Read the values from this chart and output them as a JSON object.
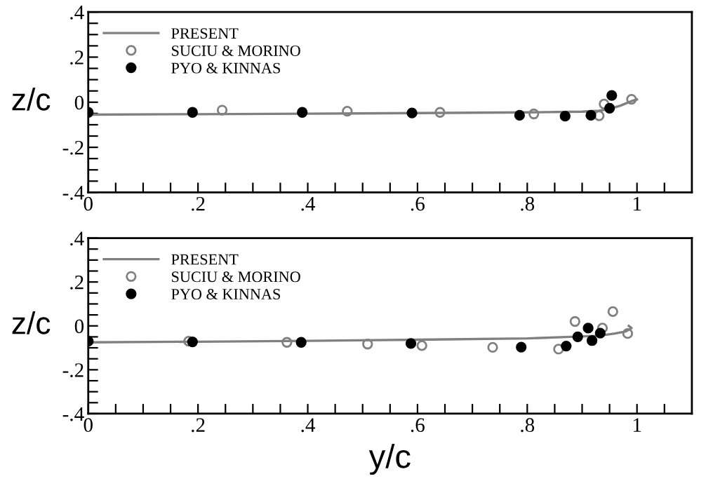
{
  "chart_data": [
    {
      "type": "line",
      "ylabel": "z/c",
      "legend": "top left",
      "grid": false,
      "xlim": [
        0,
        1.1
      ],
      "ylim": [
        -0.4,
        0.4
      ],
      "xticks": [
        0,
        {
          "value": 0.05,
          "label": null
        },
        {
          "value": 0.1,
          "label": null
        },
        {
          "value": 0.15,
          "label": null
        },
        {
          "value": 0.2,
          "label": ".2"
        },
        {
          "value": 0.25,
          "label": null
        },
        {
          "value": 0.3,
          "label": null
        },
        {
          "value": 0.35,
          "label": null
        },
        {
          "value": 0.4,
          "label": ".4"
        },
        {
          "value": 0.45,
          "label": null
        },
        {
          "value": 0.5,
          "label": null
        },
        {
          "value": 0.55,
          "label": null
        },
        {
          "value": 0.6,
          "label": ".6"
        },
        {
          "value": 0.65,
          "label": null
        },
        {
          "value": 0.7,
          "label": null
        },
        {
          "value": 0.75,
          "label": null
        },
        {
          "value": 0.8,
          "label": ".8"
        },
        {
          "value": 0.85,
          "label": null
        },
        {
          "value": 0.9,
          "label": null
        },
        {
          "value": 0.95,
          "label": null
        },
        1,
        {
          "value": 1.05,
          "label": null
        }
      ],
      "yticks": [
        {
          "value": -0.4,
          "label": "-.4"
        },
        {
          "value": -0.35,
          "label": null
        },
        {
          "value": -0.3,
          "label": null
        },
        {
          "value": -0.25,
          "label": null
        },
        {
          "value": -0.2,
          "label": "-.2"
        },
        {
          "value": -0.15,
          "label": null
        },
        {
          "value": -0.1,
          "label": null
        },
        {
          "value": -0.05,
          "label": null
        },
        0,
        {
          "value": 0.05,
          "label": null
        },
        {
          "value": 0.1,
          "label": null
        },
        {
          "value": 0.15,
          "label": null
        },
        {
          "value": 0.2,
          "label": ".2"
        },
        {
          "value": 0.25,
          "label": null
        },
        {
          "value": 0.3,
          "label": null
        },
        {
          "value": 0.35,
          "label": null
        },
        {
          "value": 0.4,
          "label": ".4"
        }
      ],
      "series": [
        {
          "name": "PRESENT",
          "marker": "none",
          "color": "#808080",
          "x": [
            0,
            0.2,
            0.4,
            0.6,
            0.8,
            0.9,
            0.93,
            0.95,
            0.97,
            0.98,
            0.99,
            1.0
          ],
          "values": [
            -0.055,
            -0.053,
            -0.051,
            -0.048,
            -0.045,
            -0.042,
            -0.038,
            -0.03,
            -0.015,
            -0.005,
            0.005,
            0.012
          ]
        },
        {
          "name": "SUCIU & MORINO",
          "type": "scatter",
          "marker": "circle",
          "color": "#808080",
          "x": [
            0.244,
            0.472,
            0.641,
            0.812,
            0.931,
            0.94,
            0.99
          ],
          "values": [
            -0.035,
            -0.04,
            -0.045,
            -0.052,
            -0.06,
            -0.008,
            0.013
          ]
        },
        {
          "name": "PYO & KINNAS",
          "type": "scatter",
          "marker": "circle",
          "color": "#000000",
          "x": [
            0,
            0.19,
            0.39,
            0.59,
            0.786,
            0.869,
            0.916,
            0.95,
            0.954
          ],
          "values": [
            -0.045,
            -0.045,
            -0.045,
            -0.048,
            -0.058,
            -0.062,
            -0.058,
            -0.027,
            0.03
          ]
        }
      ]
    },
    {
      "type": "line",
      "xlabel": "y/c",
      "ylabel": "z/c",
      "legend": "top left",
      "grid": false,
      "xlim": [
        0,
        1.1
      ],
      "ylim": [
        -0.4,
        0.4
      ],
      "xticks": [
        0,
        {
          "value": 0.05,
          "label": null
        },
        {
          "value": 0.1,
          "label": null
        },
        {
          "value": 0.15,
          "label": null
        },
        {
          "value": 0.2,
          "label": ".2"
        },
        {
          "value": 0.25,
          "label": null
        },
        {
          "value": 0.3,
          "label": null
        },
        {
          "value": 0.35,
          "label": null
        },
        {
          "value": 0.4,
          "label": ".4"
        },
        {
          "value": 0.45,
          "label": null
        },
        {
          "value": 0.5,
          "label": null
        },
        {
          "value": 0.55,
          "label": null
        },
        {
          "value": 0.6,
          "label": ".6"
        },
        {
          "value": 0.65,
          "label": null
        },
        {
          "value": 0.7,
          "label": null
        },
        {
          "value": 0.75,
          "label": null
        },
        {
          "value": 0.8,
          "label": ".8"
        },
        {
          "value": 0.85,
          "label": null
        },
        {
          "value": 0.9,
          "label": null
        },
        {
          "value": 0.95,
          "label": null
        },
        1,
        {
          "value": 1.05,
          "label": null
        }
      ],
      "yticks": [
        {
          "value": -0.4,
          "label": "-.4"
        },
        {
          "value": -0.35,
          "label": null
        },
        {
          "value": -0.3,
          "label": null
        },
        {
          "value": -0.25,
          "label": null
        },
        {
          "value": -0.2,
          "label": "-.2"
        },
        {
          "value": -0.15,
          "label": null
        },
        {
          "value": -0.1,
          "label": null
        },
        {
          "value": -0.05,
          "label": null
        },
        0,
        {
          "value": 0.05,
          "label": null
        },
        {
          "value": 0.1,
          "label": null
        },
        {
          "value": 0.15,
          "label": null
        },
        {
          "value": 0.2,
          "label": ".2"
        },
        {
          "value": 0.25,
          "label": null
        },
        {
          "value": 0.3,
          "label": null
        },
        {
          "value": 0.35,
          "label": null
        },
        {
          "value": 0.4,
          "label": ".4"
        }
      ],
      "series": [
        {
          "name": "PRESENT",
          "marker": "none",
          "color": "#808080",
          "x": [
            0,
            0.2,
            0.4,
            0.6,
            0.8,
            0.88,
            0.93,
            0.96,
            0.98,
            0.99,
            0.985
          ],
          "values": [
            -0.075,
            -0.072,
            -0.068,
            -0.063,
            -0.057,
            -0.05,
            -0.045,
            -0.035,
            -0.025,
            -0.01,
            0.0
          ]
        },
        {
          "name": "SUCIU & MORINO",
          "type": "scatter",
          "marker": "circle",
          "color": "#808080",
          "x": [
            0.183,
            0.362,
            0.509,
            0.608,
            0.737,
            0.857,
            0.887,
            0.937,
            0.956,
            0.983
          ],
          "values": [
            -0.07,
            -0.075,
            -0.083,
            -0.09,
            -0.098,
            -0.106,
            0.02,
            -0.01,
            0.065,
            -0.035
          ]
        },
        {
          "name": "PYO & KINNAS",
          "type": "scatter",
          "marker": "circle",
          "color": "#000000",
          "x": [
            0,
            0.19,
            0.388,
            0.588,
            0.789,
            0.871,
            0.892,
            0.911,
            0.918,
            0.933
          ],
          "values": [
            -0.07,
            -0.073,
            -0.075,
            -0.08,
            -0.097,
            -0.092,
            -0.05,
            -0.01,
            -0.067,
            -0.033
          ]
        }
      ]
    }
  ]
}
